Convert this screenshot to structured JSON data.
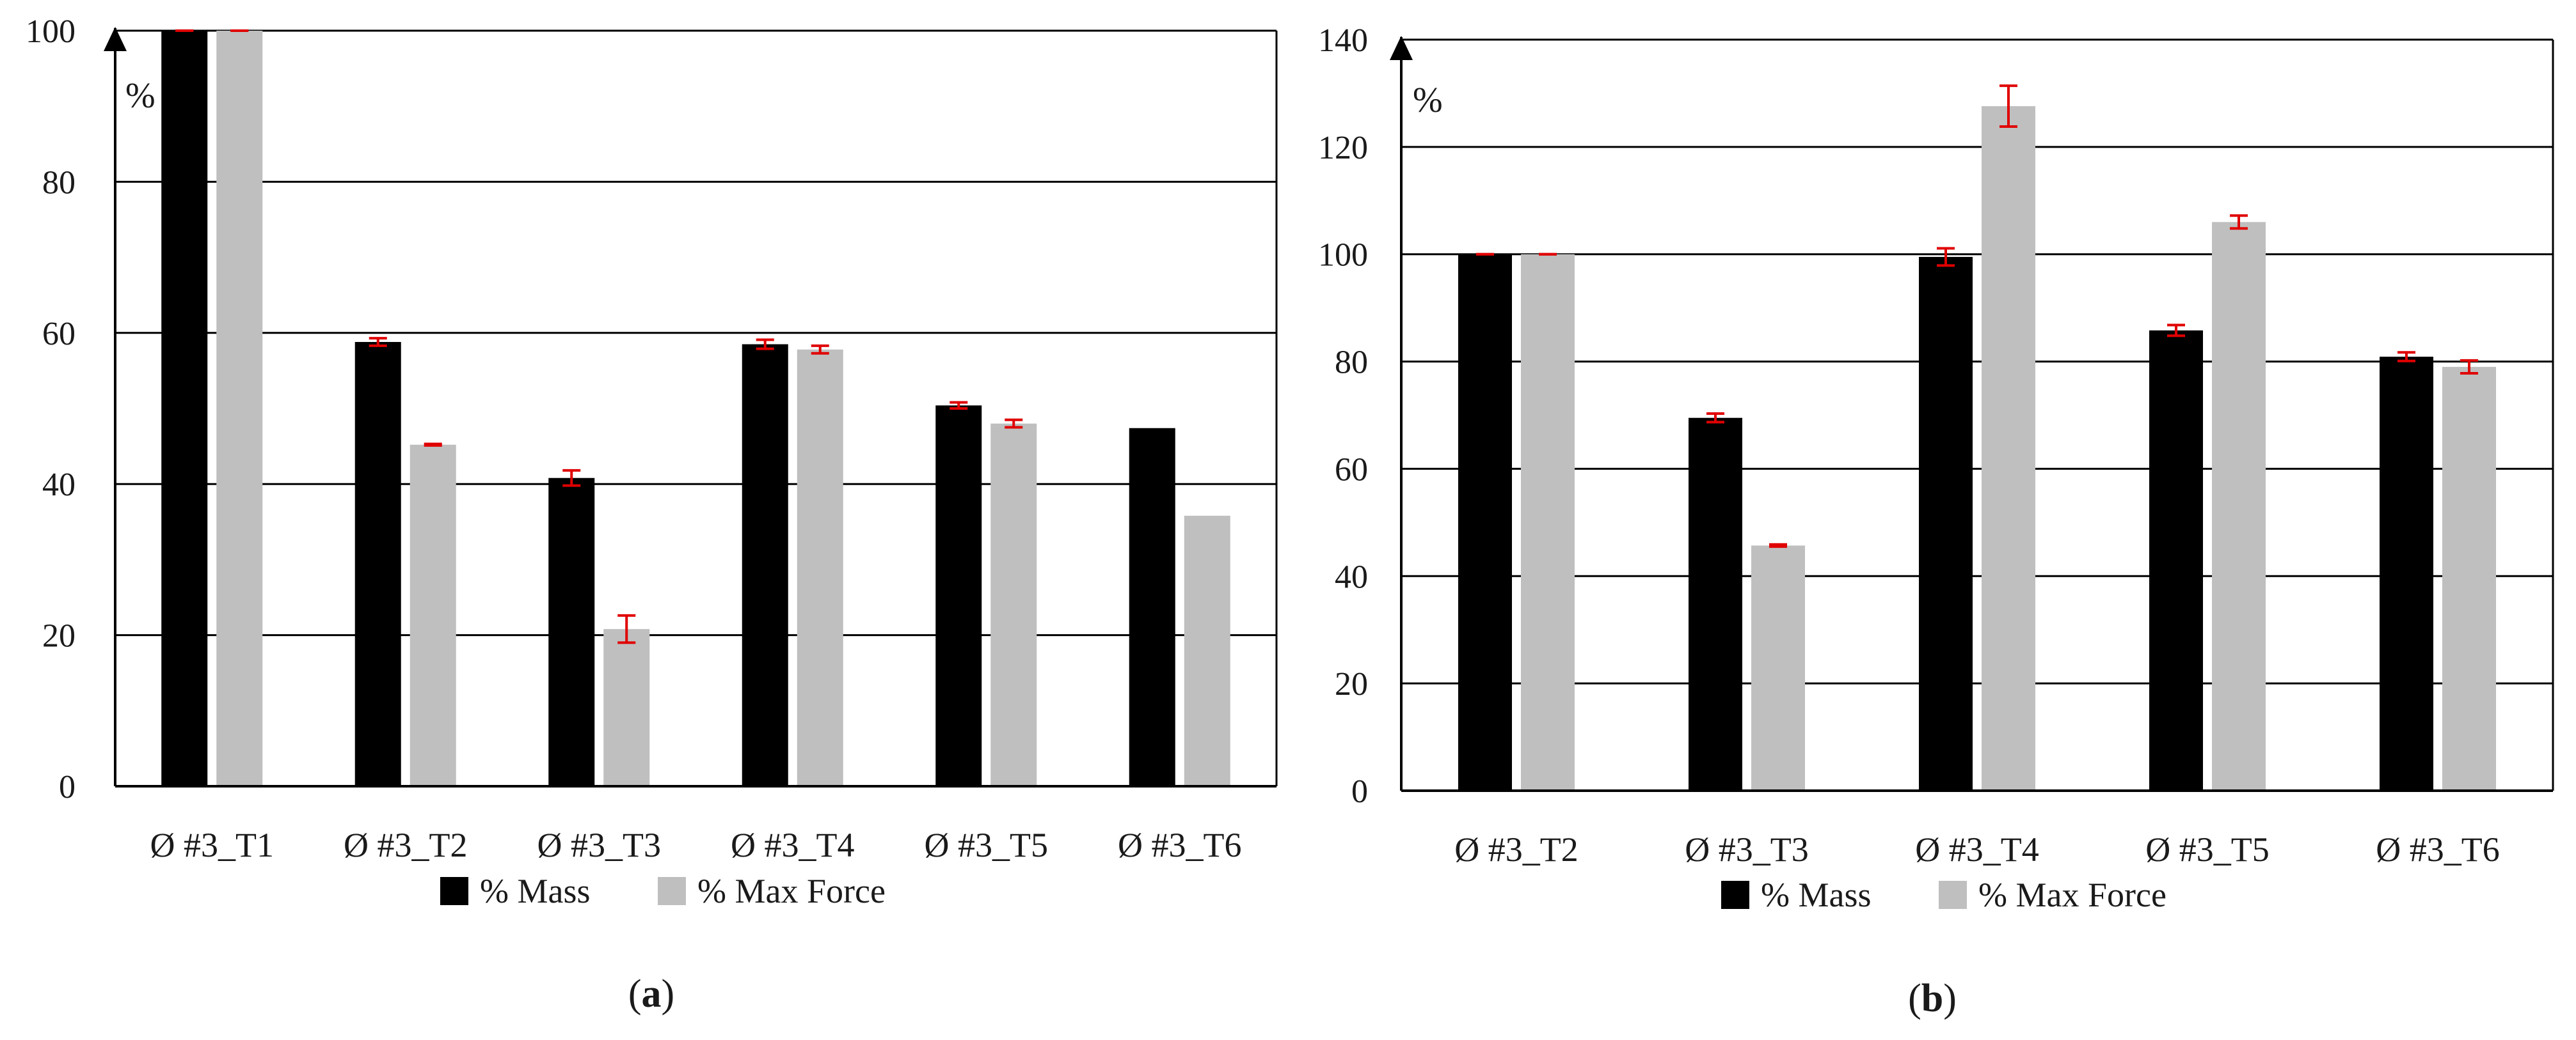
{
  "chart_data": [
    {
      "type": "bar",
      "panel_label": "a",
      "unit_label": "%",
      "ylim": [
        0,
        100
      ],
      "yticks": [
        0,
        20,
        40,
        60,
        80,
        100
      ],
      "grid": true,
      "legend_position": "bottom",
      "categories": [
        "Ø #3_T1",
        "Ø #3_T2",
        "Ø #3_T3",
        "Ø #3_T4",
        "Ø #3_T5",
        "Ø #3_T6"
      ],
      "series": [
        {
          "name": "% Mass",
          "color": "#000000",
          "values": [
            100,
            58.8,
            40.8,
            58.5,
            50.4,
            47.4
          ],
          "errors": [
            0,
            0.5,
            1.0,
            0.6,
            0.4,
            null
          ]
        },
        {
          "name": "% Max Force",
          "color": "#bfbfbf",
          "values": [
            100,
            45.2,
            20.8,
            57.8,
            48.0,
            35.8
          ],
          "errors": [
            0,
            0.1,
            1.8,
            0.5,
            0.5,
            null
          ]
        }
      ],
      "error_bar_color": "#e00000"
    },
    {
      "type": "bar",
      "panel_label": "b",
      "unit_label": "%",
      "ylim": [
        0,
        140
      ],
      "yticks": [
        0,
        20,
        40,
        60,
        80,
        100,
        120,
        140
      ],
      "grid": true,
      "legend_position": "bottom",
      "categories": [
        "Ø #3_T2",
        "Ø #3_T3",
        "Ø #3_T4",
        "Ø #3_T5",
        "Ø #3_T6"
      ],
      "series": [
        {
          "name": "% Mass",
          "color": "#000000",
          "values": [
            100,
            69.5,
            99.5,
            85.8,
            80.9
          ],
          "errors": [
            0,
            0.8,
            1.6,
            1.0,
            0.8
          ]
        },
        {
          "name": "% Max Force",
          "color": "#bfbfbf",
          "values": [
            100,
            45.7,
            127.6,
            106.0,
            79.0
          ],
          "errors": [
            0,
            0.2,
            3.8,
            1.2,
            1.2
          ]
        }
      ],
      "error_bar_color": "#e00000"
    }
  ]
}
